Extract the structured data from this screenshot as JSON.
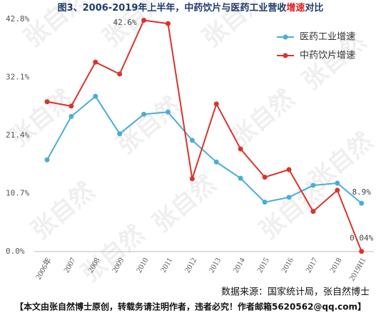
{
  "chart_data": {
    "type": "line",
    "title": [
      "图3、2006-2019年上半年，中药饮片与医药工业营收",
      "增速",
      "对比"
    ],
    "categories": [
      "2006年",
      "2007",
      "2008",
      "2009",
      "2010",
      "2011",
      "2012",
      "2013",
      "2014",
      "2015",
      "2016",
      "2017",
      "2018",
      "2019H1"
    ],
    "series": [
      {
        "name": "医药工业增速",
        "color": "#4bacd6",
        "values": [
          16.9,
          24.9,
          28.6,
          21.7,
          25.3,
          25.7,
          20.5,
          16.5,
          13.5,
          9.1,
          10.0,
          12.2,
          12.6,
          8.9
        ],
        "value_labels": [
          null,
          null,
          null,
          null,
          null,
          null,
          null,
          null,
          null,
          null,
          null,
          null,
          null,
          "8.9%"
        ]
      },
      {
        "name": "中药饮片增速",
        "color": "#d9342b",
        "values": [
          27.6,
          26.8,
          34.9,
          32.7,
          42.6,
          42.0,
          13.4,
          27.2,
          18.9,
          13.7,
          15.1,
          7.4,
          11.3,
          0.04
        ],
        "value_labels": [
          null,
          null,
          null,
          null,
          "42.6%",
          null,
          null,
          null,
          null,
          null,
          null,
          null,
          null,
          "0.04%"
        ]
      }
    ],
    "ylim": [
      0,
      42.8
    ],
    "yticks": [
      {
        "value": 0,
        "label": "0.0%"
      },
      {
        "value": 10.7,
        "label": "10.7%"
      },
      {
        "value": 21.4,
        "label": "21.4%"
      },
      {
        "value": 32.1,
        "label": "32.1%"
      },
      {
        "value": 42.8,
        "label": "42.8%"
      }
    ],
    "legend": "top-right",
    "source": "数据来源：国家统计局，张自然博士",
    "footer": "【本文由张自然博士原创，转载务请注明作者，违者必究！作者邮箱5620562@qq.com】",
    "watermark": "张自然"
  }
}
